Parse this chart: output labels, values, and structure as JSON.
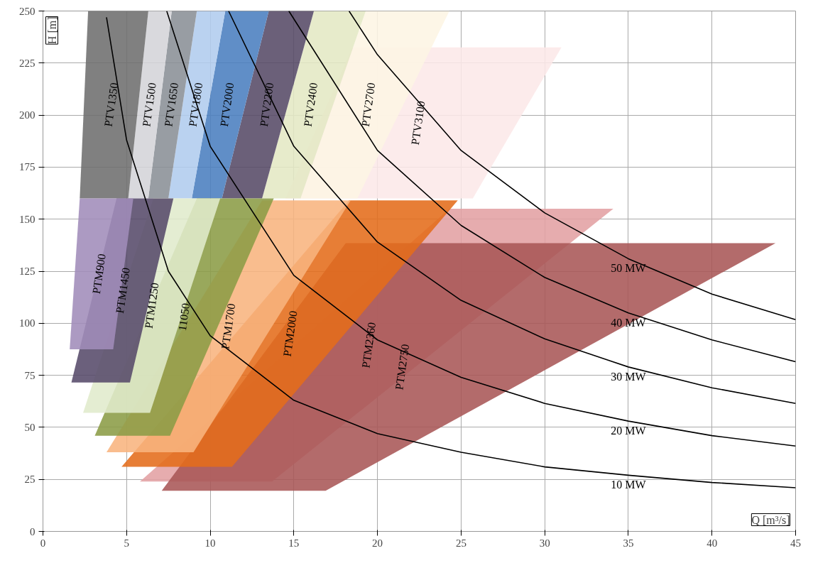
{
  "chart_data": {
    "type": "area",
    "xlim": [
      0,
      45
    ],
    "ylim": [
      0,
      250
    ],
    "xticks": [
      0,
      5,
      10,
      15,
      20,
      25,
      30,
      35,
      40,
      45
    ],
    "yticks": [
      0,
      25,
      50,
      75,
      100,
      125,
      150,
      175,
      200,
      225,
      250
    ],
    "xlabel": "Q [m³/s]",
    "ylabel": "H [m]",
    "grid": true,
    "legend": false,
    "marker": "none",
    "line_style": "solid",
    "series": [
      {
        "name": "PTV3100",
        "color": "#fce8e8",
        "x": [
          14.5,
          25.7,
          31.0,
          18.5
        ],
        "values": [
          160,
          160,
          232.5,
          232.5
        ]
      },
      {
        "name": "PTV2700",
        "type": "area",
        "color": "#fdf5e4",
        "x": [
          15.4,
          18.8,
          24.3,
          19.3
        ],
        "values": [
          160,
          160,
          250,
          250
        ]
      },
      {
        "name": "PTV2400",
        "type": "area",
        "color": "#e4e8c4",
        "x": [
          13.1,
          15.4,
          19.3,
          16.2
        ],
        "values": [
          160,
          160,
          250,
          250
        ]
      },
      {
        "name": "PTV2200",
        "type": "area",
        "color": "#574a67",
        "x": [
          10.7,
          13.1,
          16.2,
          13.5
        ],
        "values": [
          160,
          160,
          250,
          250
        ]
      },
      {
        "name": "PTV2000",
        "type": "area",
        "color": "#4a7ebf",
        "x": [
          8.9,
          10.7,
          13.5,
          10.9
        ],
        "values": [
          160,
          160,
          250,
          250
        ]
      },
      {
        "name": "PTV1800",
        "type": "area",
        "color": "#b0ccee",
        "x": [
          7.5,
          8.9,
          10.9,
          9.2
        ],
        "values": [
          160,
          160,
          250,
          250
        ]
      },
      {
        "name": "PTV1650",
        "type": "area",
        "color": "#8a8f96",
        "x": [
          6.3,
          7.5,
          9.2,
          7.7
        ],
        "values": [
          160,
          160,
          250,
          250
        ]
      },
      {
        "name": "PTV1500",
        "type": "area",
        "color": "#d4d4d8",
        "x": [
          5.1,
          6.3,
          7.7,
          6.3
        ],
        "values": [
          160,
          160,
          250,
          250
        ]
      },
      {
        "name": "PTV1350",
        "type": "area",
        "color": "#6e6e6e",
        "x": [
          2.2,
          5.1,
          6.3,
          2.7
        ],
        "values": [
          160,
          160,
          250,
          250
        ]
      },
      {
        "name": "PTM2360",
        "type": "area",
        "color": "#e3a0a3",
        "x": [
          5.8,
          13.7,
          34.1,
          24.3
        ],
        "values": [
          24,
          24,
          155,
          155
        ]
      },
      {
        "name": "PTM2750",
        "type": "area",
        "color": "#a85656",
        "x": [
          7.1,
          16.9,
          43.8,
          18.1
        ],
        "values": [
          19.5,
          19.5,
          138.5,
          138.5
        ]
      },
      {
        "name": "PTM2000",
        "type": "area",
        "color": "#e46c1a",
        "x": [
          4.7,
          11.3,
          24.8,
          18.3
        ],
        "values": [
          31,
          31,
          159,
          159
        ]
      },
      {
        "name": "PTM1700",
        "type": "area",
        "color": "#f8b47e",
        "x": [
          3.8,
          9.0,
          18.4,
          13.1
        ],
        "values": [
          38,
          38,
          159,
          159
        ]
      },
      {
        "name": "11050",
        "type": "area",
        "color": "#8b9c45",
        "x": [
          3.1,
          7.6,
          13.8,
          9.2
        ],
        "values": [
          46,
          46,
          160,
          160
        ]
      },
      {
        "name": "PTM1250",
        "type": "area",
        "color": "#e0ebcc",
        "x": [
          2.4,
          6.4,
          10.6,
          6.6
        ],
        "values": [
          57,
          57,
          160,
          160
        ]
      },
      {
        "name": "PTM1450",
        "type": "area",
        "color": "#574a6a",
        "x": [
          1.7,
          5.2,
          7.8,
          4.4
        ],
        "values": [
          71.5,
          71.5,
          160,
          160
        ]
      },
      {
        "name": "PTM900",
        "type": "area",
        "color": "#a08cba",
        "x": [
          1.6,
          4.2,
          5.4,
          2.2
        ],
        "values": [
          87.5,
          87.5,
          160,
          160
        ]
      },
      {
        "name": "10 MW",
        "type": "line",
        "color": "#000000",
        "x": [
          3.8,
          5,
          7.5,
          10,
          15,
          20,
          25,
          30,
          35,
          40,
          45
        ],
        "values": [
          247,
          188,
          125,
          94,
          63,
          47,
          38,
          31,
          27,
          23.5,
          21
        ]
      },
      {
        "name": "20 MW",
        "type": "line",
        "color": "#000000",
        "x": [
          7.4,
          10,
          15,
          20,
          25,
          30,
          35,
          40,
          45
        ],
        "values": [
          250,
          185,
          123,
          92,
          74,
          61.5,
          53,
          46,
          41
        ]
      },
      {
        "name": "30 MW",
        "type": "line",
        "color": "#000000",
        "x": [
          11.1,
          15,
          20,
          25,
          30,
          35,
          40,
          45
        ],
        "values": [
          250,
          185,
          139,
          111,
          92.5,
          79,
          69,
          61.5
        ]
      },
      {
        "name": "40 MW",
        "type": "line",
        "color": "#000000",
        "x": [
          14.7,
          20,
          25,
          30,
          35,
          40,
          45
        ],
        "values": [
          250,
          183,
          147,
          122,
          105,
          92,
          81.5
        ]
      },
      {
        "name": "50 MW",
        "type": "line",
        "color": "#000000",
        "x": [
          18.3,
          20,
          25,
          30,
          35,
          40,
          45
        ],
        "values": [
          250,
          229,
          183,
          153,
          131,
          114,
          101.7
        ]
      }
    ]
  }
}
